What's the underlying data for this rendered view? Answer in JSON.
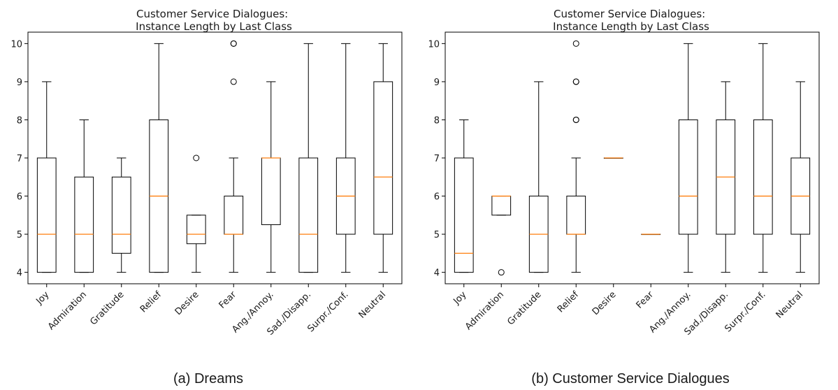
{
  "figure": {
    "colors": {
      "box": "#000000",
      "median": "#ff7f0e",
      "background": "#ffffff"
    }
  },
  "chart_data": [
    {
      "type": "box",
      "title": "Customer Service Dialogues:\nInstance Length by Last Class",
      "caption": "(a) Dreams",
      "xlabel": "",
      "ylabel": "",
      "ylim": [
        3.7,
        10.3
      ],
      "yticks": [
        4,
        5,
        6,
        7,
        8,
        9,
        10
      ],
      "grid": false,
      "categories": [
        "Joy",
        "Admiration",
        "Gratitude",
        "Relief",
        "Desire",
        "Fear",
        "Ang./Annoy.",
        "Sad./Disapp.",
        "Surpr./Conf.",
        "Neutral"
      ],
      "boxes": [
        {
          "whislo": 4,
          "q1": 4,
          "med": 5,
          "q3": 7,
          "whishi": 9,
          "fliers": []
        },
        {
          "whislo": 4,
          "q1": 4,
          "med": 5,
          "q3": 6.5,
          "whishi": 8,
          "fliers": []
        },
        {
          "whislo": 4,
          "q1": 4.5,
          "med": 5,
          "q3": 6.5,
          "whishi": 7,
          "fliers": []
        },
        {
          "whislo": 4,
          "q1": 4,
          "med": 6,
          "q3": 8,
          "whishi": 10,
          "fliers": []
        },
        {
          "whislo": 4,
          "q1": 4.75,
          "med": 5,
          "q3": 5.5,
          "whishi": 5.5,
          "fliers": [
            7
          ]
        },
        {
          "whislo": 4,
          "q1": 5,
          "med": 5,
          "q3": 6,
          "whishi": 7,
          "fliers": [
            9,
            10,
            10
          ]
        },
        {
          "whislo": 4,
          "q1": 5.25,
          "med": 7,
          "q3": 7,
          "whishi": 9,
          "fliers": []
        },
        {
          "whislo": 4,
          "q1": 4,
          "med": 5,
          "q3": 7,
          "whishi": 10,
          "fliers": []
        },
        {
          "whislo": 4,
          "q1": 5,
          "med": 6,
          "q3": 7,
          "whishi": 10,
          "fliers": []
        },
        {
          "whislo": 4,
          "q1": 5,
          "med": 6.5,
          "q3": 9,
          "whishi": 10,
          "fliers": []
        }
      ]
    },
    {
      "type": "box",
      "title": "Customer Service Dialogues:\nInstance Length by Last Class",
      "caption": "(b) Customer Service Dialogues",
      "xlabel": "",
      "ylabel": "",
      "ylim": [
        3.7,
        10.3
      ],
      "yticks": [
        4,
        5,
        6,
        7,
        8,
        9,
        10
      ],
      "grid": false,
      "categories": [
        "Joy",
        "Admiration",
        "Gratitude",
        "Relief",
        "Desire",
        "Fear",
        "Ang./Annoy.",
        "Sad./Disapp.",
        "Surpr./Conf.",
        "Neutral"
      ],
      "boxes": [
        {
          "whislo": 4,
          "q1": 4,
          "med": 4.5,
          "q3": 7,
          "whishi": 8,
          "fliers": []
        },
        {
          "whislo": 5.5,
          "q1": 5.5,
          "med": 6,
          "q3": 6,
          "whishi": 6,
          "fliers": [
            4
          ]
        },
        {
          "whislo": 4,
          "q1": 4,
          "med": 5,
          "q3": 6,
          "whishi": 9,
          "fliers": []
        },
        {
          "whislo": 4,
          "q1": 5,
          "med": 5,
          "q3": 6,
          "whishi": 7,
          "fliers": [
            8,
            8,
            9,
            9,
            10
          ]
        },
        {
          "whislo": 7,
          "q1": 7,
          "med": 7,
          "q3": 7,
          "whishi": 7,
          "fliers": []
        },
        {
          "whislo": 5,
          "q1": 5,
          "med": 5,
          "q3": 5,
          "whishi": 5,
          "fliers": []
        },
        {
          "whislo": 4,
          "q1": 5,
          "med": 6,
          "q3": 8,
          "whishi": 10,
          "fliers": []
        },
        {
          "whislo": 4,
          "q1": 5,
          "med": 6.5,
          "q3": 8,
          "whishi": 9,
          "fliers": []
        },
        {
          "whislo": 4,
          "q1": 5,
          "med": 6,
          "q3": 8,
          "whishi": 10,
          "fliers": []
        },
        {
          "whislo": 4,
          "q1": 5,
          "med": 6,
          "q3": 7,
          "whishi": 9,
          "fliers": []
        }
      ]
    }
  ]
}
